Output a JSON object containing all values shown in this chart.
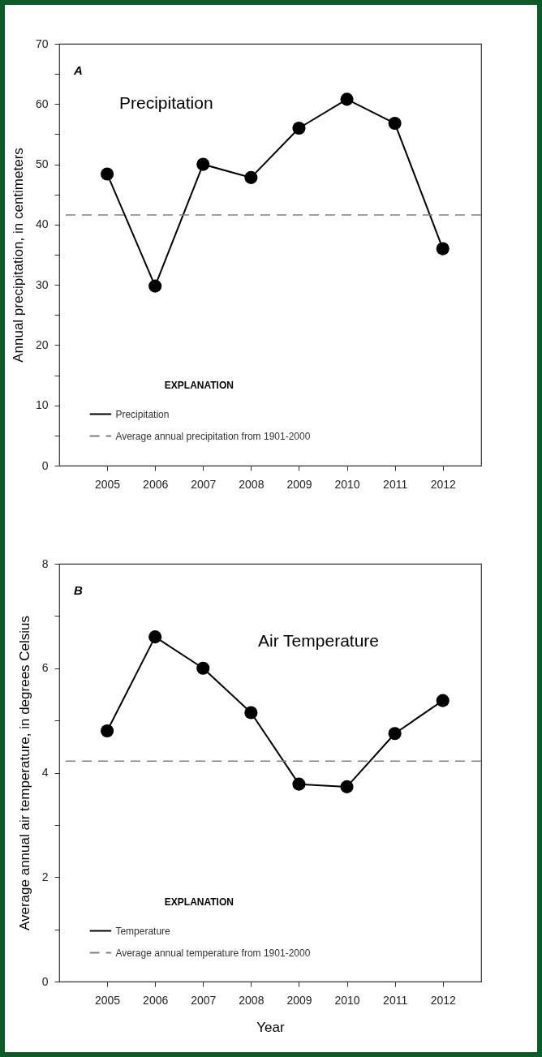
{
  "chart_data": [
    {
      "type": "line",
      "title": "Precipitation",
      "ylabel": "Annual precipitation, in centimeters",
      "legend_title": "EXPLANATION",
      "annotations": [
        "A"
      ],
      "x": [
        2005,
        2006,
        2007,
        2008,
        2009,
        2010,
        2011,
        2012
      ],
      "series": [
        {
          "name": "Precipitation",
          "color": "#000000",
          "values": [
            48.4,
            29.8,
            50,
            47.8,
            56,
            60.8,
            56.8,
            36
          ]
        }
      ],
      "xlim": [
        2004,
        2012.8
      ],
      "xticks": [
        2005,
        2006,
        2007,
        2008,
        2009,
        2010,
        2011,
        2012
      ],
      "ylim": [
        0,
        70
      ],
      "yticks": [
        0,
        {
          "value": 5,
          "label": null
        },
        10,
        {
          "value": 15,
          "label": null
        },
        20,
        {
          "value": 25,
          "label": null
        },
        30,
        {
          "value": 35,
          "label": null
        },
        40,
        {
          "value": 45,
          "label": null
        },
        50,
        {
          "value": 55,
          "label": null
        },
        60,
        {
          "value": 65,
          "label": null
        },
        70
      ],
      "ref_lines": [
        {
          "axis": "y",
          "value": 41.6,
          "label": "Average annual precipitation from 1901-2000",
          "color": "#808080",
          "line_style": "dashed"
        }
      ],
      "grid": false,
      "legend": "bottom left",
      "marker": "circle",
      "line_style": "solid"
    },
    {
      "type": "line",
      "title": "Air Temperature",
      "xlabel": "Year",
      "ylabel": "Average annual air temperature, in degrees Celsius",
      "legend_title": "EXPLANATION",
      "annotations": [
        "B"
      ],
      "x": [
        2005,
        2006,
        2007,
        2008,
        2009,
        2010,
        2011,
        2012
      ],
      "series": [
        {
          "name": "Temperature",
          "color": "#000000",
          "values": [
            4.8,
            6.6,
            6.0,
            5.15,
            3.78,
            3.73,
            4.75,
            5.38
          ]
        }
      ],
      "xlim": [
        2004,
        2012.8
      ],
      "xticks": [
        2005,
        2006,
        2007,
        2008,
        2009,
        2010,
        2011,
        2012
      ],
      "ylim": [
        0,
        8
      ],
      "yticks": [
        0,
        {
          "value": 1,
          "label": null
        },
        2,
        {
          "value": 3,
          "label": null
        },
        4,
        {
          "value": 5,
          "label": null
        },
        6,
        {
          "value": 7,
          "label": null
        },
        8
      ],
      "ref_lines": [
        {
          "axis": "y",
          "value": 4.22,
          "label": "Average annual temperature from 1901-2000",
          "color": "#808080",
          "line_style": "dashed"
        }
      ],
      "grid": false,
      "legend": "bottom left",
      "marker": "circle",
      "line_style": "solid"
    }
  ]
}
